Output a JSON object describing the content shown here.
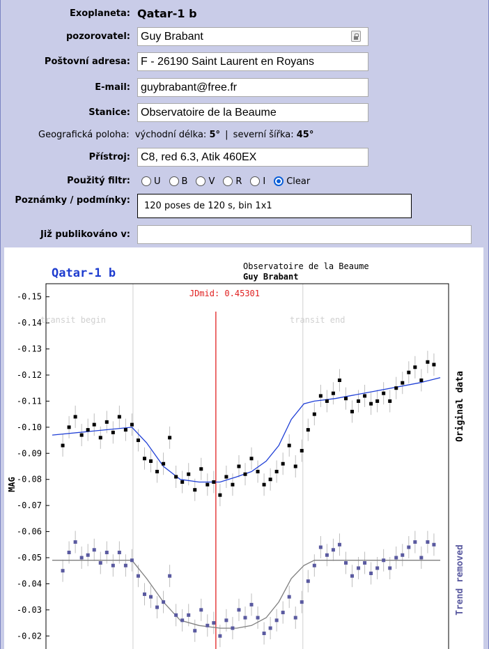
{
  "form": {
    "planet_label": "Exoplaneta:",
    "planet_value": "Qatar-1 b",
    "observer_label": "pozorovatel:",
    "observer_value": "Guy Brabant",
    "address_label": "Poštovní adresa:",
    "address_value": "F - 26190 Saint Laurent en Royans",
    "email_label": "E-mail:",
    "email_value": "guybrabant@free.fr",
    "station_label": "Stanice:",
    "station_value": "Observatoire de la Beaume",
    "geo_label": "Geografická poloha:",
    "geo_long_label": "východní délka:",
    "geo_long_value": "5°",
    "geo_sep": "|",
    "geo_lat_label": "severní šířka:",
    "geo_lat_value": "45°",
    "instrument_label": "Přístroj:",
    "instrument_value": "C8, red 6.3, Atik 460EX",
    "filter_label": "Použitý filtr:",
    "filters": [
      "U",
      "B",
      "V",
      "R",
      "I",
      "Clear"
    ],
    "filter_selected": "Clear",
    "notes_label": "Poznámky / podmínky:",
    "notes_value": "120 poses de 120 s, bin 1x1",
    "published_label": "Již publikováno v:",
    "published_value": ""
  },
  "colors": {
    "panel": "#c9cce8",
    "fit_top": "#1f3fd6",
    "fit_bottom": "#7f7f7f",
    "jdmid": "#e02020",
    "points_bottom": "#5a5aa0",
    "title": "#1e3ccf"
  },
  "chart_data": {
    "type": "scatter",
    "title": "Qatar-1 b",
    "station": "Observatoire de la Beaume",
    "observer": "Guy Brabant",
    "jdmid_label": "JDmid: 0.45301",
    "jdmid": 0.45301,
    "ylabel": "MAG",
    "ylim": [
      -0.155,
      -0.015
    ],
    "yticks": [
      -0.15,
      -0.14,
      -0.13,
      -0.12,
      -0.11,
      -0.1,
      -0.09,
      -0.08,
      -0.07,
      -0.06,
      -0.05,
      -0.04,
      -0.03,
      -0.02
    ],
    "annotations": [
      "transit begin",
      "transit end"
    ],
    "series": [
      {
        "name": "Original data",
        "x": [
          0.38,
          0.383,
          0.386,
          0.389,
          0.392,
          0.395,
          0.398,
          0.401,
          0.404,
          0.407,
          0.41,
          0.413,
          0.416,
          0.419,
          0.422,
          0.425,
          0.428,
          0.431,
          0.434,
          0.437,
          0.44,
          0.443,
          0.446,
          0.449,
          0.452,
          0.455,
          0.458,
          0.461,
          0.464,
          0.467,
          0.47,
          0.473,
          0.476,
          0.479,
          0.482,
          0.485,
          0.488,
          0.491,
          0.494,
          0.497,
          0.5,
          0.503,
          0.506,
          0.509,
          0.512,
          0.515,
          0.518,
          0.521,
          0.524,
          0.527,
          0.53,
          0.533,
          0.536,
          0.539,
          0.542,
          0.545,
          0.548,
          0.551,
          0.554,
          0.557
        ],
        "y": [
          -0.093,
          -0.1,
          -0.104,
          -0.097,
          -0.099,
          -0.101,
          -0.096,
          -0.102,
          -0.098,
          -0.104,
          -0.099,
          -0.101,
          -0.095,
          -0.088,
          -0.087,
          -0.083,
          -0.086,
          -0.096,
          -0.081,
          -0.079,
          -0.082,
          -0.076,
          -0.084,
          -0.078,
          -0.079,
          -0.074,
          -0.081,
          -0.078,
          -0.085,
          -0.082,
          -0.088,
          -0.083,
          -0.078,
          -0.08,
          -0.083,
          -0.086,
          -0.093,
          -0.085,
          -0.091,
          -0.099,
          -0.105,
          -0.112,
          -0.11,
          -0.113,
          -0.118,
          -0.111,
          -0.106,
          -0.11,
          -0.112,
          -0.109,
          -0.11,
          -0.113,
          -0.11,
          -0.115,
          -0.117,
          -0.121,
          -0.123,
          -0.118,
          -0.125,
          -0.124
        ],
        "fit_x": [
          0.375,
          0.413,
          0.42,
          0.428,
          0.436,
          0.445,
          0.455,
          0.463,
          0.47,
          0.477,
          0.483,
          0.489,
          0.495,
          0.5,
          0.51,
          0.53,
          0.55,
          0.56
        ],
        "fit_y": [
          -0.097,
          -0.1,
          -0.094,
          -0.085,
          -0.08,
          -0.079,
          -0.079,
          -0.081,
          -0.083,
          -0.087,
          -0.093,
          -0.103,
          -0.109,
          -0.11,
          -0.111,
          -0.114,
          -0.117,
          -0.119
        ]
      },
      {
        "name": "Trend removed",
        "x": [
          0.38,
          0.383,
          0.386,
          0.389,
          0.392,
          0.395,
          0.398,
          0.401,
          0.404,
          0.407,
          0.41,
          0.413,
          0.416,
          0.419,
          0.422,
          0.425,
          0.428,
          0.431,
          0.434,
          0.437,
          0.44,
          0.443,
          0.446,
          0.449,
          0.452,
          0.455,
          0.458,
          0.461,
          0.464,
          0.467,
          0.47,
          0.473,
          0.476,
          0.479,
          0.482,
          0.485,
          0.488,
          0.491,
          0.494,
          0.497,
          0.5,
          0.503,
          0.506,
          0.509,
          0.512,
          0.515,
          0.518,
          0.521,
          0.524,
          0.527,
          0.53,
          0.533,
          0.536,
          0.539,
          0.542,
          0.545,
          0.548,
          0.551,
          0.554,
          0.557
        ],
        "y": [
          -0.045,
          -0.052,
          -0.056,
          -0.05,
          -0.051,
          -0.053,
          -0.048,
          -0.052,
          -0.047,
          -0.052,
          -0.047,
          -0.049,
          -0.043,
          -0.036,
          -0.035,
          -0.031,
          -0.033,
          -0.043,
          -0.028,
          -0.026,
          -0.028,
          -0.022,
          -0.03,
          -0.024,
          -0.025,
          -0.02,
          -0.026,
          -0.023,
          -0.03,
          -0.027,
          -0.032,
          -0.027,
          -0.021,
          -0.023,
          -0.026,
          -0.029,
          -0.035,
          -0.027,
          -0.033,
          -0.041,
          -0.047,
          -0.054,
          -0.051,
          -0.053,
          -0.055,
          -0.048,
          -0.043,
          -0.046,
          -0.048,
          -0.044,
          -0.046,
          -0.049,
          -0.046,
          -0.05,
          -0.051,
          -0.054,
          -0.056,
          -0.05,
          -0.056,
          -0.055
        ],
        "fit_x": [
          0.375,
          0.413,
          0.42,
          0.428,
          0.436,
          0.445,
          0.455,
          0.463,
          0.47,
          0.477,
          0.483,
          0.489,
          0.495,
          0.5,
          0.56
        ],
        "fit_y": [
          -0.049,
          -0.049,
          -0.042,
          -0.033,
          -0.026,
          -0.024,
          -0.023,
          -0.023,
          -0.024,
          -0.027,
          -0.033,
          -0.042,
          -0.047,
          -0.049,
          -0.049
        ]
      }
    ]
  }
}
